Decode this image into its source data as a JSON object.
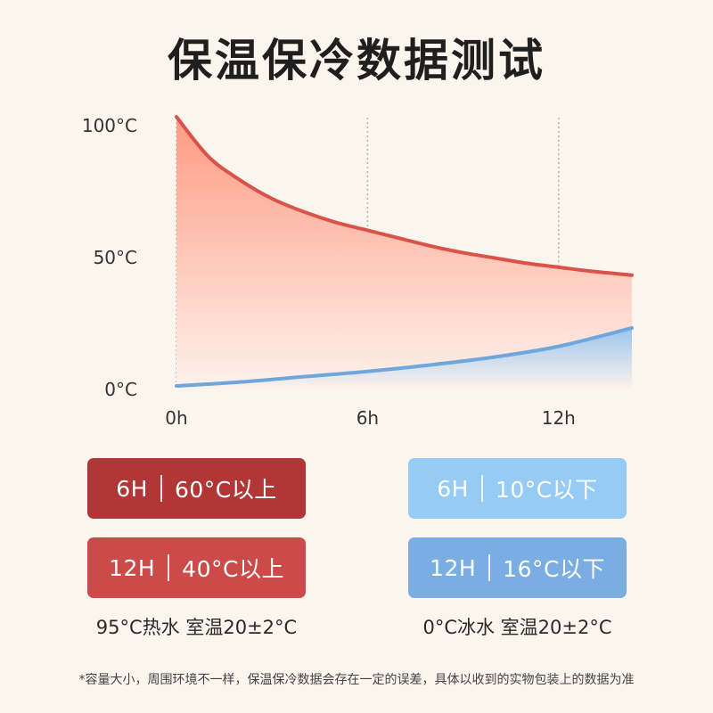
{
  "title": "保温保冷数据测试",
  "chart_data": {
    "type": "area",
    "x_unit": "hours",
    "x_ticks": [
      {
        "value": 0,
        "label": "0h"
      },
      {
        "value": 6,
        "label": "6h"
      },
      {
        "value": 12,
        "label": "12h"
      }
    ],
    "y_ticks": [
      {
        "value": 0,
        "label": "0°C"
      },
      {
        "value": 50,
        "label": "50°C"
      },
      {
        "value": 100,
        "label": "100°C"
      }
    ],
    "xlim": [
      0,
      14.3
    ],
    "ylim": [
      0,
      100
    ],
    "vertical_gridlines_at": [
      0,
      6,
      12
    ],
    "series": [
      {
        "color": "#d9534a",
        "fill_top": "#ff9a82",
        "fill_bottom": "#fdf2ec",
        "x": [
          0,
          1,
          2,
          3,
          4,
          5,
          6,
          7,
          8,
          9,
          10,
          11,
          12,
          13,
          14.3
        ],
        "y": [
          103,
          88,
          79,
          72,
          67,
          63,
          60,
          57,
          54,
          51.5,
          49.5,
          47.5,
          46,
          44.5,
          43
        ]
      },
      {
        "color": "#6fa6dc",
        "fill_top": "#9cc5ee",
        "fill_bottom": "#fdf2ec",
        "x": [
          0,
          2,
          4,
          6,
          8,
          10,
          12,
          14.3
        ],
        "y": [
          1,
          2.5,
          4.5,
          6.5,
          9,
          12,
          16,
          23
        ]
      }
    ]
  },
  "hot_results": [
    {
      "time": "6H",
      "value": "60°C以上",
      "color": "#b23636"
    },
    {
      "time": "12H",
      "value": "40°C以上",
      "color": "#cc4a4a"
    }
  ],
  "cold_results": [
    {
      "time": "6H",
      "value": "10°C以下",
      "color": "#96cbf5"
    },
    {
      "time": "12H",
      "value": "16°C以下",
      "color": "#7aaee3"
    }
  ],
  "hot_condition": "95°C热水 室温20±2°C",
  "cold_condition": "0°C冰水 室温20±2°C",
  "footnote": "*容量大小，周围环境不一样，保温保冷数据会存在一定的误差，具体以收到的实物包装上的数据为准"
}
